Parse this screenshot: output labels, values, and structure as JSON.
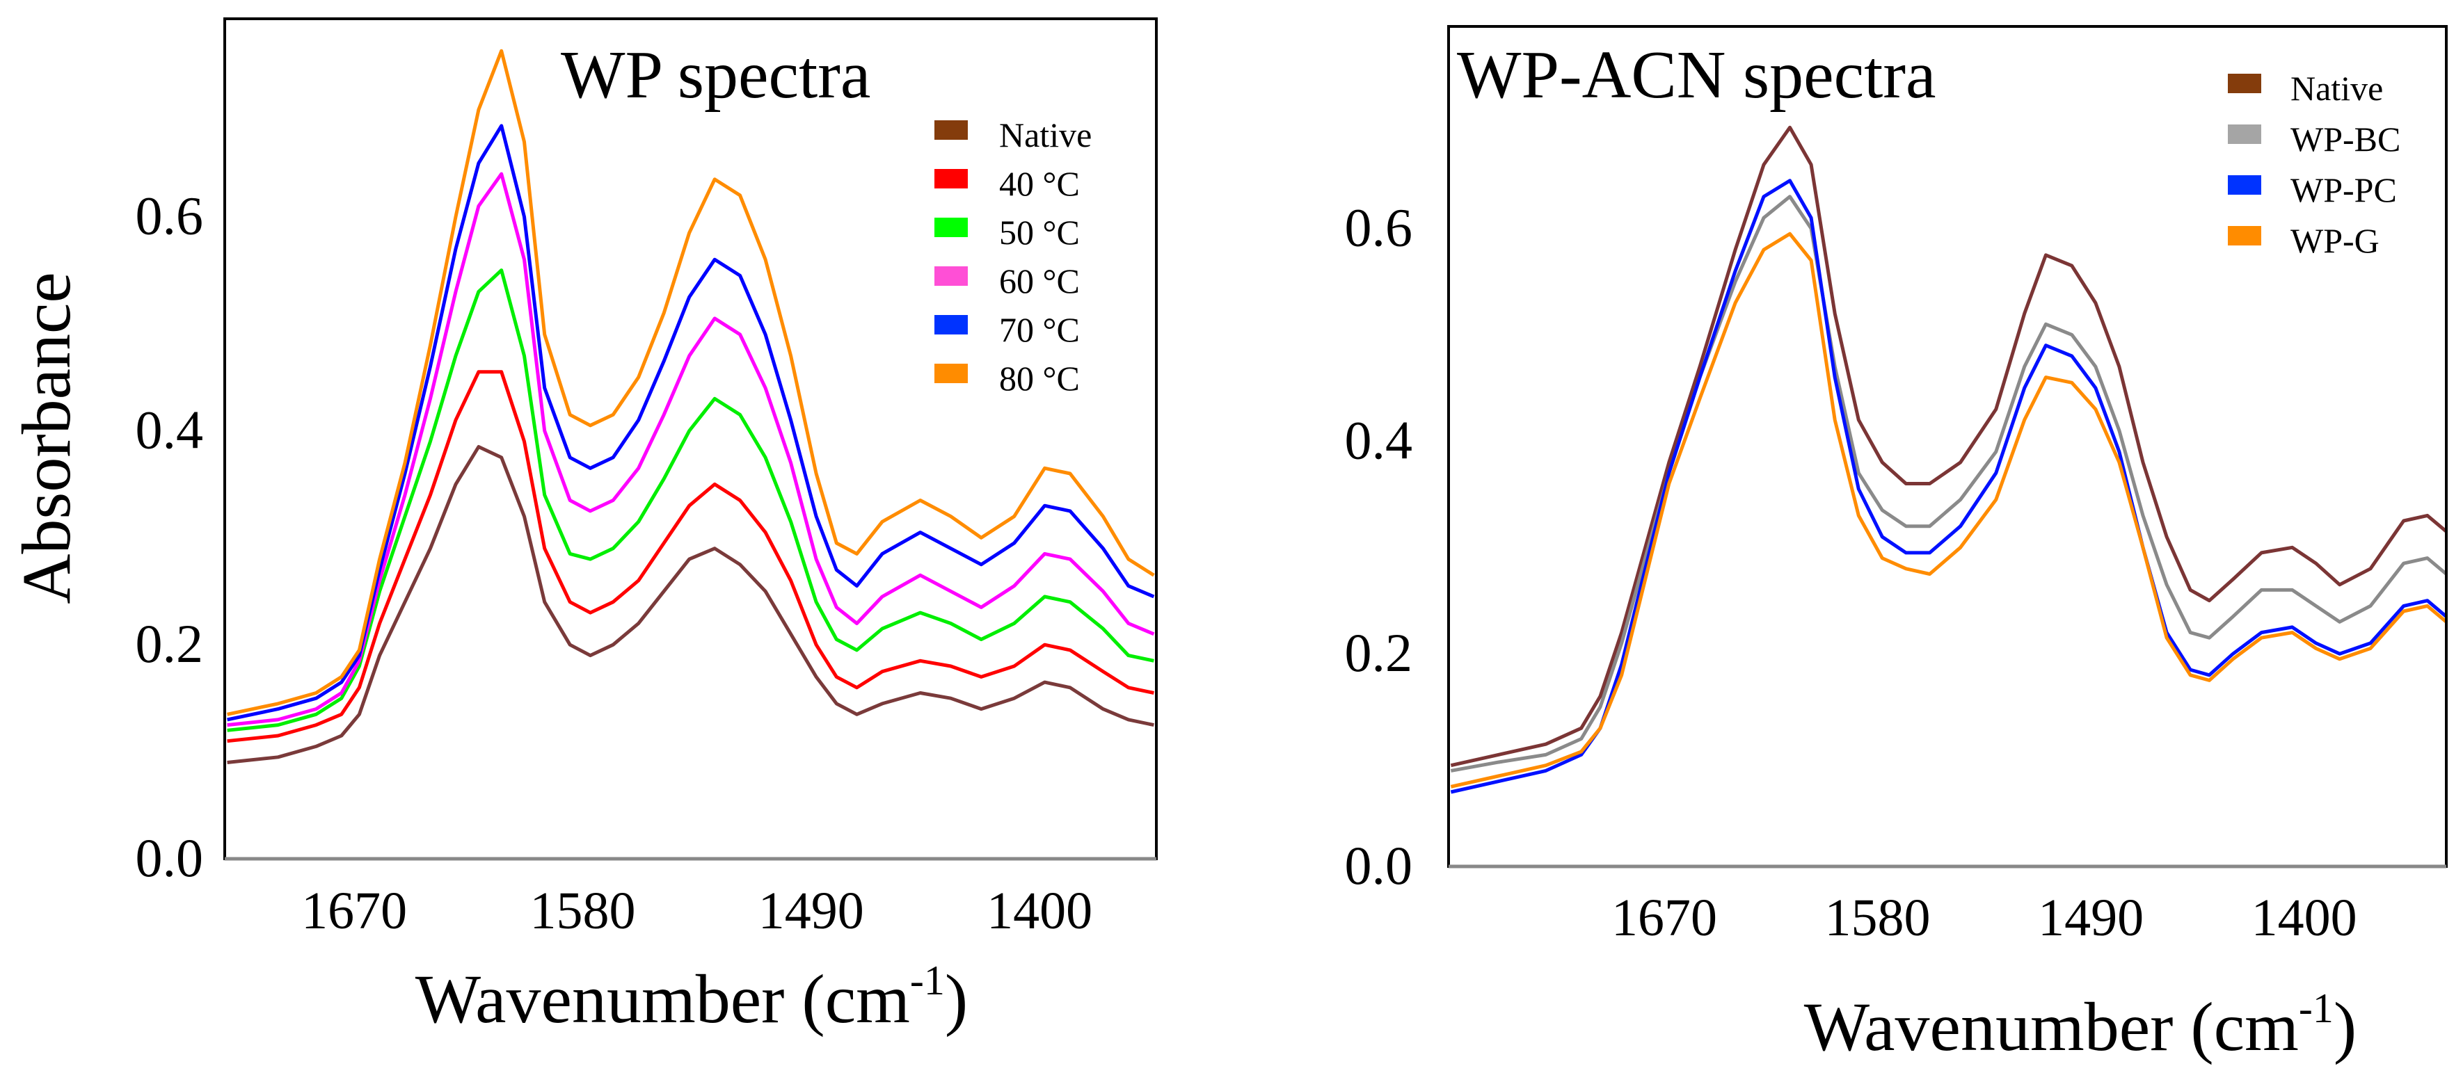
{
  "chart_data": [
    {
      "type": "line",
      "title": "WP spectra",
      "xlabel": "Wavenumber (cm-1)",
      "xlabel_main": "Wavenumber (cm",
      "xlabel_sup": "-1",
      "xlabel_end": ")",
      "ylabel": "Absorbance",
      "xlim": [
        1721,
        1354
      ],
      "ylim": [
        0,
        0.785
      ],
      "xticks": [
        1670,
        1580,
        1490,
        1400
      ],
      "xtick_labels": [
        "1670",
        "1580",
        "1490",
        "1400"
      ],
      "yticks": [
        0.0,
        0.2,
        0.4,
        0.6
      ],
      "ytick_labels": [
        "0.0",
        "0.2",
        "0.4",
        "0.6"
      ],
      "grid": false,
      "legend_position": "top-right",
      "x": [
        1720,
        1700,
        1685,
        1675,
        1668,
        1660,
        1650,
        1640,
        1630,
        1621,
        1612,
        1603,
        1595,
        1585,
        1577,
        1568,
        1558,
        1548,
        1538,
        1528,
        1518,
        1508,
        1498,
        1488,
        1480,
        1472,
        1462,
        1447,
        1435,
        1423,
        1410,
        1398,
        1388,
        1375,
        1365,
        1355
      ],
      "series": [
        {
          "name": "Native",
          "color": "#7a3a3a",
          "legend_color": "#843c0c",
          "values": [
            0.09,
            0.095,
            0.105,
            0.115,
            0.135,
            0.19,
            0.24,
            0.29,
            0.35,
            0.385,
            0.375,
            0.32,
            0.24,
            0.2,
            0.19,
            0.2,
            0.22,
            0.25,
            0.28,
            0.29,
            0.275,
            0.25,
            0.21,
            0.17,
            0.145,
            0.135,
            0.145,
            0.155,
            0.15,
            0.14,
            0.15,
            0.165,
            0.16,
            0.14,
            0.13,
            0.125
          ]
        },
        {
          "name": "40 °C",
          "color": "#ff0000",
          "legend_color": "#ff0000",
          "values": [
            0.11,
            0.115,
            0.125,
            0.135,
            0.16,
            0.22,
            0.28,
            0.34,
            0.41,
            0.455,
            0.455,
            0.39,
            0.29,
            0.24,
            0.23,
            0.24,
            0.26,
            0.295,
            0.33,
            0.35,
            0.335,
            0.305,
            0.26,
            0.2,
            0.17,
            0.16,
            0.175,
            0.185,
            0.18,
            0.17,
            0.18,
            0.2,
            0.195,
            0.175,
            0.16,
            0.155
          ]
        },
        {
          "name": "50 °C",
          "color": "#00ee00",
          "legend_color": "#00ff00",
          "values": [
            0.12,
            0.125,
            0.135,
            0.15,
            0.18,
            0.25,
            0.32,
            0.39,
            0.47,
            0.53,
            0.55,
            0.47,
            0.34,
            0.285,
            0.28,
            0.29,
            0.315,
            0.355,
            0.4,
            0.43,
            0.415,
            0.375,
            0.315,
            0.24,
            0.205,
            0.195,
            0.215,
            0.23,
            0.22,
            0.205,
            0.22,
            0.245,
            0.24,
            0.215,
            0.19,
            0.185
          ]
        },
        {
          "name": "60 °C",
          "color": "#ff00ff",
          "legend_color": "#ff4fd6",
          "values": [
            0.125,
            0.13,
            0.14,
            0.155,
            0.185,
            0.26,
            0.34,
            0.43,
            0.53,
            0.61,
            0.64,
            0.56,
            0.4,
            0.335,
            0.325,
            0.335,
            0.365,
            0.415,
            0.47,
            0.505,
            0.49,
            0.44,
            0.37,
            0.28,
            0.235,
            0.22,
            0.245,
            0.265,
            0.25,
            0.235,
            0.255,
            0.285,
            0.28,
            0.25,
            0.22,
            0.21
          ]
        },
        {
          "name": "70 °C",
          "color": "#0000ff",
          "legend_color": "#0033ff",
          "values": [
            0.13,
            0.14,
            0.15,
            0.165,
            0.19,
            0.27,
            0.36,
            0.46,
            0.57,
            0.65,
            0.685,
            0.6,
            0.44,
            0.375,
            0.365,
            0.375,
            0.41,
            0.465,
            0.525,
            0.56,
            0.545,
            0.49,
            0.41,
            0.32,
            0.27,
            0.255,
            0.285,
            0.305,
            0.29,
            0.275,
            0.295,
            0.33,
            0.325,
            0.29,
            0.255,
            0.245
          ]
        },
        {
          "name": "80 °C",
          "color": "#ff8c00",
          "legend_color": "#ff8c00",
          "values": [
            0.135,
            0.145,
            0.155,
            0.17,
            0.195,
            0.28,
            0.37,
            0.48,
            0.6,
            0.7,
            0.755,
            0.67,
            0.49,
            0.415,
            0.405,
            0.415,
            0.45,
            0.51,
            0.585,
            0.635,
            0.62,
            0.56,
            0.47,
            0.36,
            0.295,
            0.285,
            0.315,
            0.335,
            0.32,
            0.3,
            0.32,
            0.365,
            0.36,
            0.32,
            0.28,
            0.265
          ]
        }
      ]
    },
    {
      "type": "line",
      "title": "WP-ACN spectra",
      "xlabel": "Wavenumber (cm-1)",
      "xlabel_main": "Wavenumber (cm",
      "xlabel_sup": "-1",
      "xlabel_end": ")",
      "ylabel": "",
      "xlim": [
        1761,
        1340
      ],
      "ylim": [
        0,
        0.79
      ],
      "xticks": [
        1670,
        1580,
        1490,
        1400
      ],
      "xtick_labels": [
        "1670",
        "1580",
        "1490",
        "1400"
      ],
      "yticks": [
        0.0,
        0.2,
        0.4,
        0.6
      ],
      "ytick_labels": [
        "0.0",
        "0.2",
        "0.4",
        "0.6"
      ],
      "grid": false,
      "legend_position": "top-right",
      "x": [
        1760,
        1740,
        1720,
        1705,
        1697,
        1688,
        1678,
        1668,
        1655,
        1640,
        1628,
        1617,
        1608,
        1598,
        1588,
        1578,
        1568,
        1558,
        1545,
        1530,
        1518,
        1509,
        1498,
        1488,
        1478,
        1468,
        1458,
        1448,
        1440,
        1430,
        1418,
        1405,
        1395,
        1385,
        1372,
        1358,
        1348,
        1340
      ],
      "series": [
        {
          "name": "Native",
          "color": "#7b3535",
          "legend_color": "#843c0c",
          "values": [
            0.095,
            0.105,
            0.115,
            0.13,
            0.16,
            0.22,
            0.3,
            0.38,
            0.47,
            0.58,
            0.66,
            0.695,
            0.66,
            0.52,
            0.42,
            0.38,
            0.36,
            0.36,
            0.38,
            0.43,
            0.52,
            0.575,
            0.565,
            0.53,
            0.47,
            0.38,
            0.31,
            0.26,
            0.25,
            0.27,
            0.295,
            0.3,
            0.285,
            0.265,
            0.28,
            0.325,
            0.33,
            0.315
          ]
        },
        {
          "name": "WP-BC",
          "color": "#8a8a8a",
          "legend_color": "#a5a5a5",
          "values": [
            0.09,
            0.098,
            0.105,
            0.12,
            0.15,
            0.21,
            0.29,
            0.37,
            0.46,
            0.55,
            0.61,
            0.63,
            0.6,
            0.47,
            0.37,
            0.335,
            0.32,
            0.32,
            0.345,
            0.39,
            0.47,
            0.51,
            0.5,
            0.47,
            0.41,
            0.33,
            0.265,
            0.22,
            0.215,
            0.235,
            0.26,
            0.26,
            0.245,
            0.23,
            0.245,
            0.285,
            0.29,
            0.275
          ]
        },
        {
          "name": "WP-PC",
          "color": "#0010ff",
          "legend_color": "#0033ff",
          "values": [
            0.07,
            0.08,
            0.09,
            0.105,
            0.13,
            0.19,
            0.28,
            0.37,
            0.46,
            0.56,
            0.63,
            0.645,
            0.61,
            0.46,
            0.355,
            0.31,
            0.295,
            0.295,
            0.32,
            0.37,
            0.45,
            0.49,
            0.48,
            0.45,
            0.39,
            0.3,
            0.22,
            0.185,
            0.18,
            0.2,
            0.22,
            0.225,
            0.21,
            0.2,
            0.21,
            0.245,
            0.25,
            0.235
          ]
        },
        {
          "name": "WP-G",
          "color": "#ff8c00",
          "legend_color": "#ff8c00",
          "values": [
            0.075,
            0.085,
            0.095,
            0.108,
            0.13,
            0.18,
            0.27,
            0.36,
            0.44,
            0.53,
            0.58,
            0.595,
            0.57,
            0.42,
            0.33,
            0.29,
            0.28,
            0.275,
            0.3,
            0.345,
            0.42,
            0.46,
            0.455,
            0.43,
            0.38,
            0.3,
            0.215,
            0.18,
            0.175,
            0.195,
            0.215,
            0.22,
            0.205,
            0.195,
            0.205,
            0.24,
            0.245,
            0.23
          ]
        }
      ]
    }
  ]
}
